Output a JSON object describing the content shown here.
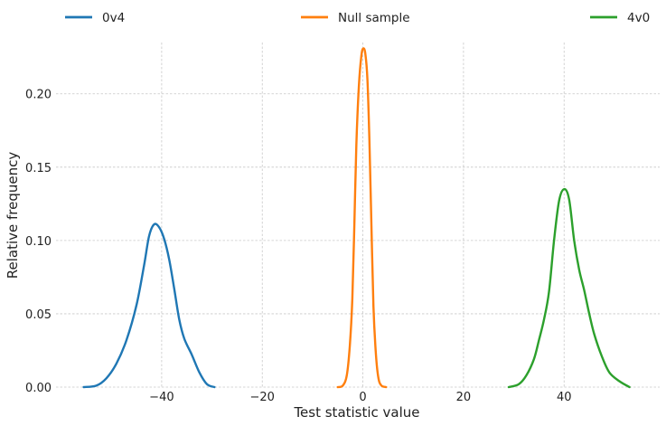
{
  "chart_data": {
    "type": "line",
    "title": "",
    "xlabel": "Test statistic value",
    "ylabel": "Relative frequency",
    "xlim": [
      -61,
      59
    ],
    "ylim": [
      0,
      0.235
    ],
    "xticks": [
      -40,
      -20,
      0,
      20,
      40
    ],
    "xtick_labels": [
      "−40",
      "−20",
      "0",
      "20",
      "40"
    ],
    "yticks": [
      0.0,
      0.05,
      0.1,
      0.15,
      0.2
    ],
    "ytick_labels": [
      "0.00",
      "0.05",
      "0.10",
      "0.15",
      "0.20"
    ],
    "grid": true,
    "legend_placement": "top, spread horizontally",
    "series": [
      {
        "name": "0v4",
        "color": "#1f77b4",
        "points": [
          [
            -55.5,
            0.0
          ],
          [
            -53,
            0.001
          ],
          [
            -51,
            0.006
          ],
          [
            -49,
            0.016
          ],
          [
            -47,
            0.032
          ],
          [
            -45,
            0.056
          ],
          [
            -43.5,
            0.083
          ],
          [
            -42.5,
            0.103
          ],
          [
            -41.5,
            0.111
          ],
          [
            -40.5,
            0.109
          ],
          [
            -39.5,
            0.101
          ],
          [
            -38.5,
            0.087
          ],
          [
            -37.5,
            0.067
          ],
          [
            -36.5,
            0.046
          ],
          [
            -35.5,
            0.033
          ],
          [
            -34,
            0.022
          ],
          [
            -32.5,
            0.01
          ],
          [
            -31,
            0.002
          ],
          [
            -29.5,
            0.0
          ]
        ]
      },
      {
        "name": "Null sample",
        "color": "#ff7f0e",
        "points": [
          [
            -5,
            0.0
          ],
          [
            -4,
            0.001
          ],
          [
            -3.2,
            0.008
          ],
          [
            -2.6,
            0.028
          ],
          [
            -2.1,
            0.06
          ],
          [
            -1.7,
            0.11
          ],
          [
            -1.3,
            0.165
          ],
          [
            -0.8,
            0.205
          ],
          [
            -0.3,
            0.226
          ],
          [
            0.1,
            0.231
          ],
          [
            0.5,
            0.227
          ],
          [
            0.9,
            0.21
          ],
          [
            1.3,
            0.168
          ],
          [
            1.7,
            0.11
          ],
          [
            2.1,
            0.055
          ],
          [
            2.6,
            0.022
          ],
          [
            3.1,
            0.006
          ],
          [
            3.7,
            0.001
          ],
          [
            4.6,
            0.0
          ]
        ]
      },
      {
        "name": "4v0",
        "color": "#2ca02c",
        "points": [
          [
            29,
            0.0
          ],
          [
            31,
            0.002
          ],
          [
            32.5,
            0.008
          ],
          [
            34,
            0.019
          ],
          [
            35,
            0.032
          ],
          [
            36,
            0.046
          ],
          [
            37,
            0.065
          ],
          [
            38,
            0.1
          ],
          [
            39,
            0.127
          ],
          [
            40,
            0.135
          ],
          [
            41,
            0.128
          ],
          [
            42,
            0.1
          ],
          [
            43,
            0.08
          ],
          [
            44,
            0.066
          ],
          [
            45,
            0.05
          ],
          [
            46,
            0.036
          ],
          [
            47.5,
            0.021
          ],
          [
            49,
            0.01
          ],
          [
            51,
            0.004
          ],
          [
            53,
            0.0
          ]
        ]
      }
    ]
  }
}
